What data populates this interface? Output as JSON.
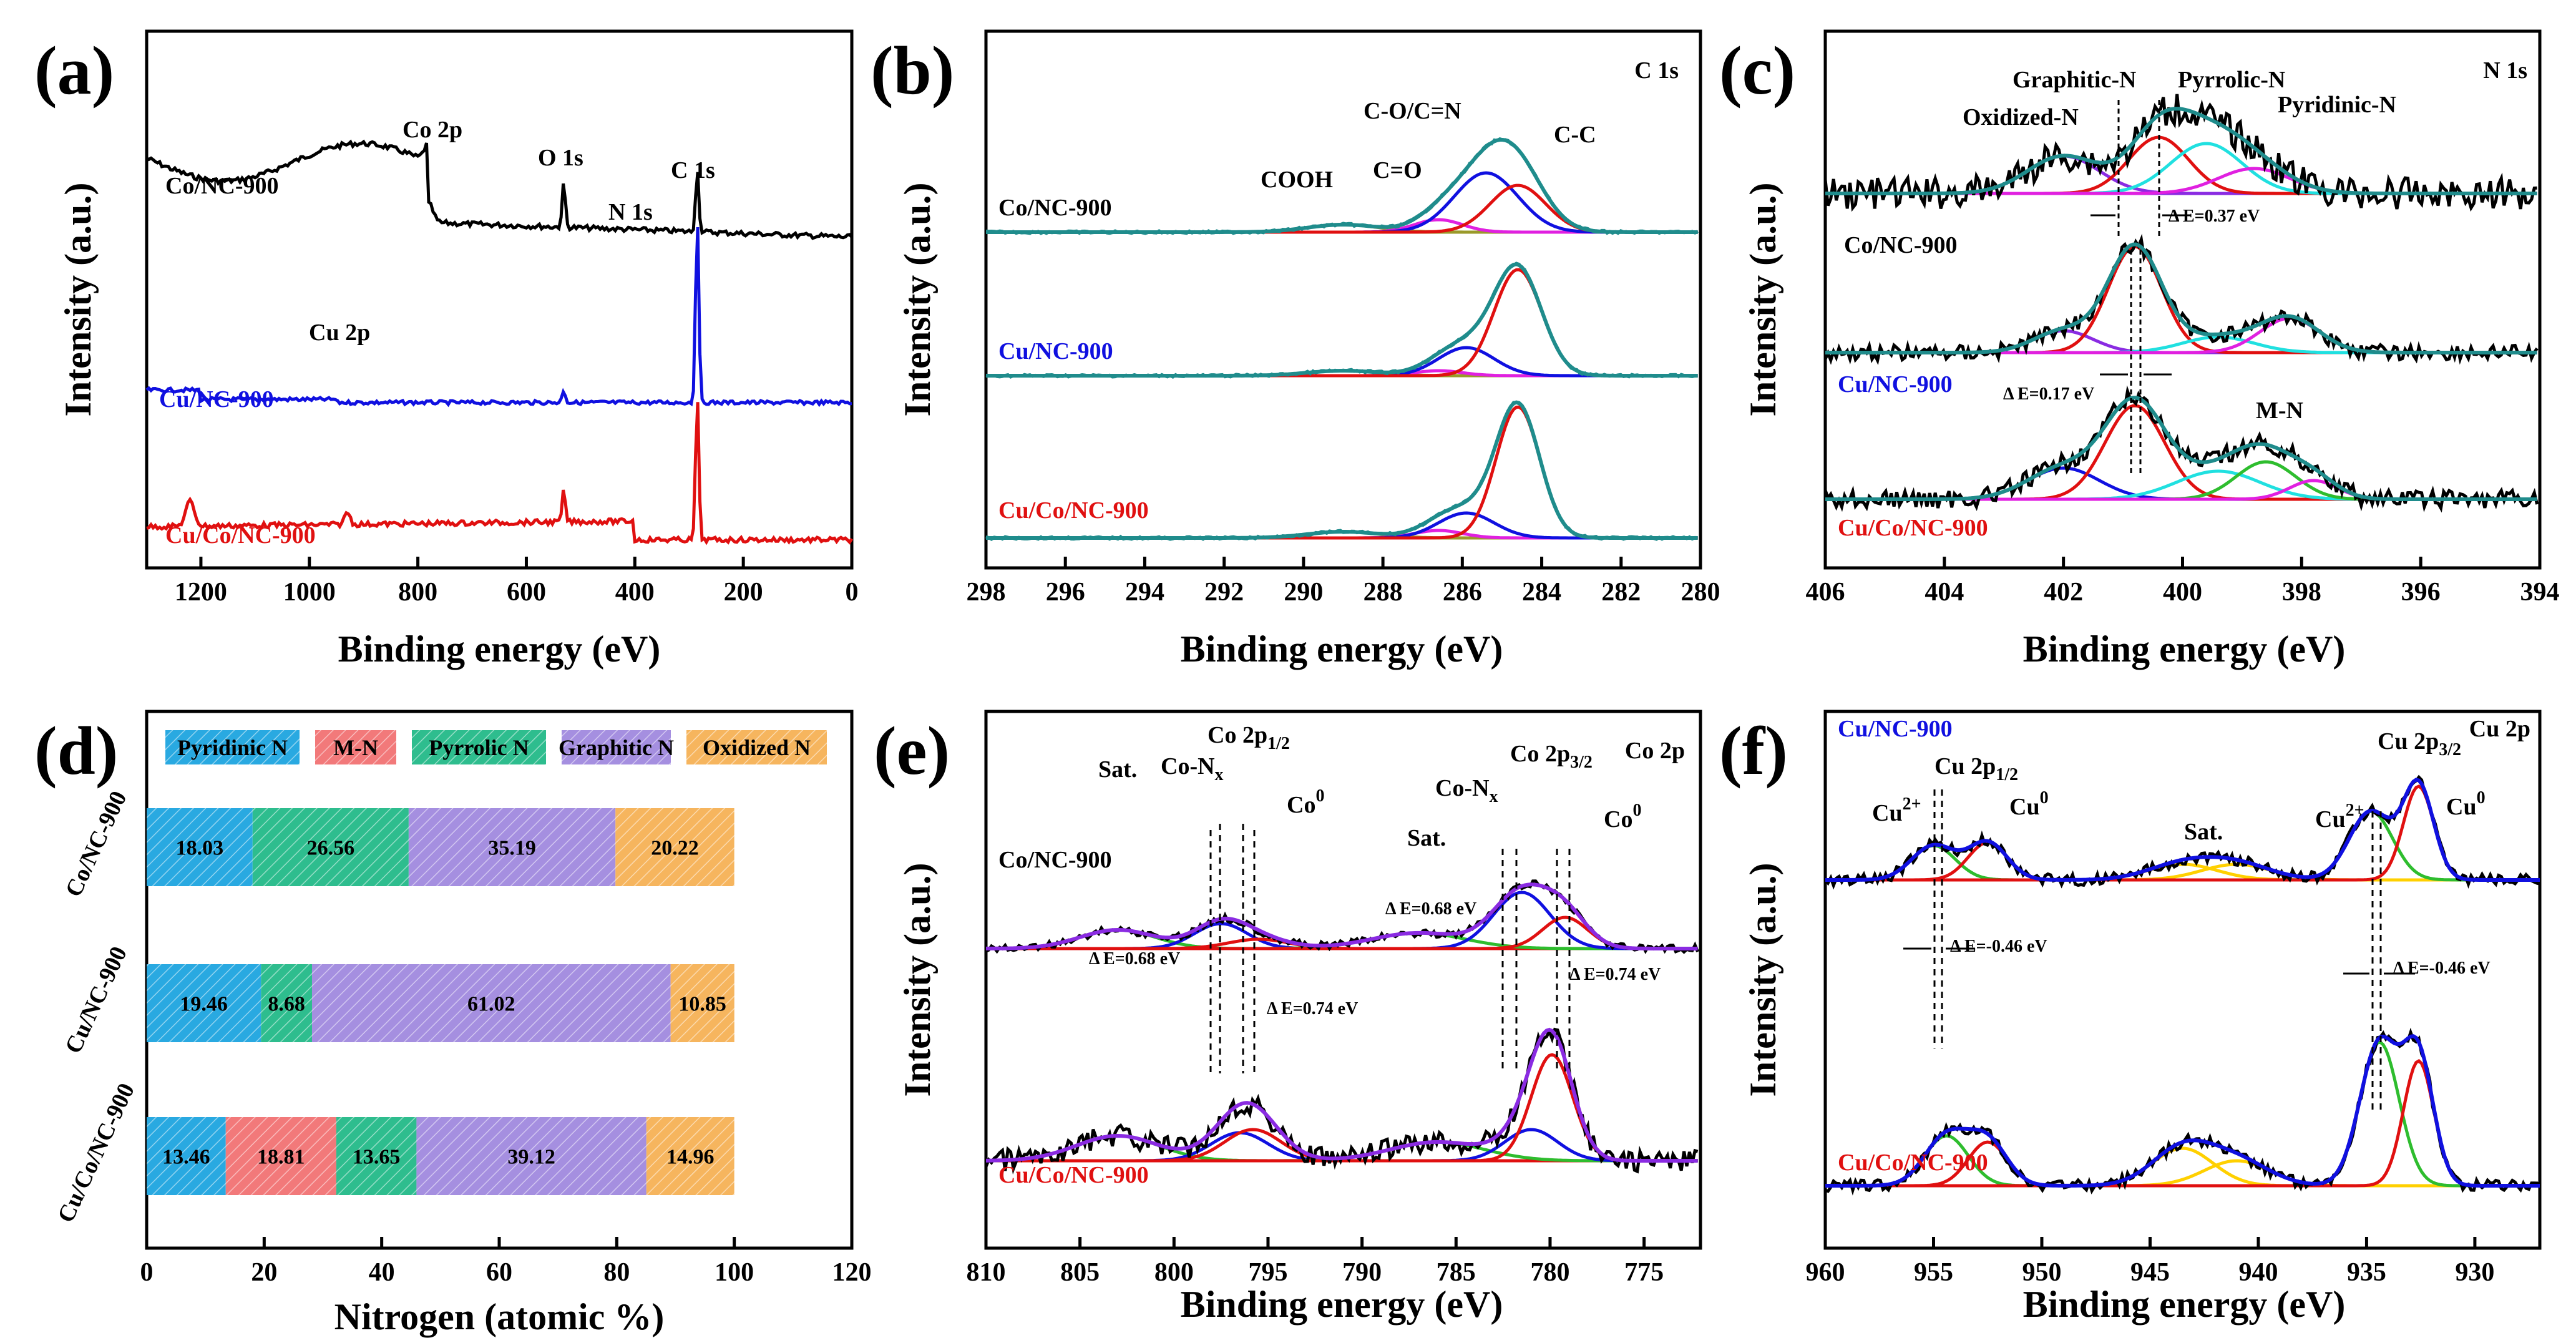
{
  "chart_data": [
    {
      "panel": "(a)",
      "type": "line",
      "corner_label": "",
      "xlabel": "Binding energy (eV)",
      "ylabel": "Intensity (a.u.)",
      "xlim": [
        1300,
        0
      ],
      "xticks": [
        "1200",
        "1000",
        "800",
        "600",
        "400",
        "200",
        "0"
      ],
      "series": [
        {
          "name": "Co/NC-900",
          "color": "#000000"
        },
        {
          "name": "Cu/NC-900",
          "color": "#1010e0"
        },
        {
          "name": "Cu/Co/NC-900",
          "color": "#e01010"
        }
      ],
      "annotations": [
        "Co 2p",
        "O 1s",
        "C 1s",
        "N 1s",
        "Cu 2p"
      ]
    },
    {
      "panel": "(b)",
      "type": "line",
      "corner_label": "C 1s",
      "xlabel": "Binding energy (eV)",
      "ylabel": "Intensity (a.u.)",
      "xlim": [
        298,
        280
      ],
      "xticks": [
        "298",
        "296",
        "294",
        "292",
        "290",
        "288",
        "286",
        "284",
        "282",
        "280"
      ],
      "series": [
        {
          "name": "Co/NC-900",
          "color": "#000000"
        },
        {
          "name": "Cu/NC-900",
          "color": "#1010e0"
        },
        {
          "name": "Cu/Co/NC-900",
          "color": "#e01010"
        }
      ],
      "annotations": [
        "COOH",
        "C=O",
        "C-O/C=N",
        "C-C"
      ]
    },
    {
      "panel": "(c)",
      "type": "line",
      "corner_label": "N 1s",
      "xlabel": "Binding energy (eV)",
      "ylabel": "Intensity (a.u.)",
      "xlim": [
        406,
        394
      ],
      "xticks": [
        "406",
        "404",
        "402",
        "400",
        "398",
        "396",
        "394"
      ],
      "series": [
        {
          "name": "Co/NC-900",
          "color": "#000000"
        },
        {
          "name": "Cu/NC-900",
          "color": "#1010e0"
        },
        {
          "name": "Cu/Co/NC-900",
          "color": "#e01010"
        }
      ],
      "annotations": [
        "Graphitic-N",
        "Pyrrolic-N",
        "Oxidized-N",
        "Pyridinic-N",
        "M-N",
        "Δ E=0.37 eV",
        "Δ E=0.17 eV"
      ]
    },
    {
      "panel": "(d)",
      "type": "bar",
      "orientation": "horizontal",
      "stacked": true,
      "xlabel": "Nitrogen (atomic %)",
      "xlim": [
        0,
        120
      ],
      "xticks": [
        "0",
        "20",
        "40",
        "60",
        "80",
        "100",
        "120"
      ],
      "categories": [
        "Co/NC-900",
        "Cu/NC-900",
        "Cu/Co/NC-900"
      ],
      "series": [
        {
          "name": "Pyridinic N",
          "color": "#29a9e1",
          "values": [
            18.03,
            19.46,
            13.46
          ]
        },
        {
          "name": "M-N",
          "color": "#f2797a",
          "values": [
            0,
            0,
            18.81
          ]
        },
        {
          "name": "Pyrrolic N",
          "color": "#2ebd8e",
          "values": [
            26.56,
            8.68,
            13.65
          ]
        },
        {
          "name": "Graphitic N",
          "color": "#a58fe0",
          "values": [
            35.19,
            61.02,
            39.12
          ]
        },
        {
          "name": "Oxidized N",
          "color": "#f6b55e",
          "values": [
            20.22,
            10.85,
            14.96
          ]
        }
      ],
      "value_labels": [
        [
          "18.03",
          "",
          "26.56",
          "35.19",
          "20.22"
        ],
        [
          "19.46",
          "",
          "8.68",
          "61.02",
          "10.85"
        ],
        [
          "13.46",
          "18.81",
          "13.65",
          "39.12",
          "14.96"
        ]
      ]
    },
    {
      "panel": "(e)",
      "type": "line",
      "corner_label": "Co 2p",
      "xlabel": "Binding energy (eV)",
      "ylabel": "Intensity (a.u.)",
      "xlim": [
        810,
        772
      ],
      "xticks": [
        "810",
        "805",
        "800",
        "795",
        "790",
        "785",
        "780",
        "775"
      ],
      "series": [
        {
          "name": "Co/NC-900",
          "color": "#000000"
        },
        {
          "name": "Cu/Co/NC-900",
          "color": "#e01010"
        }
      ],
      "annotations": [
        "Sat.",
        "Co-N",
        "x",
        "Co 2p",
        "1/2",
        "Co",
        "0",
        "3/2",
        "Δ E=0.68 eV",
        "Δ E=0.74 eV"
      ]
    },
    {
      "panel": "(f)",
      "type": "line",
      "corner_label": "Cu 2p",
      "xlabel": "Binding energy (eV)",
      "ylabel": "Intensity (a.u.)",
      "xlim": [
        960,
        927
      ],
      "xticks": [
        "960",
        "955",
        "950",
        "945",
        "940",
        "935",
        "930"
      ],
      "series": [
        {
          "name": "Cu/NC-900",
          "color": "#1010e0"
        },
        {
          "name": "Cu/Co/NC-900",
          "color": "#e01010"
        }
      ],
      "annotations": [
        "Cu 2p",
        "1/2",
        "3/2",
        "Cu",
        "2+",
        "0",
        "Sat.",
        "Δ E=-0.46 eV"
      ]
    }
  ]
}
